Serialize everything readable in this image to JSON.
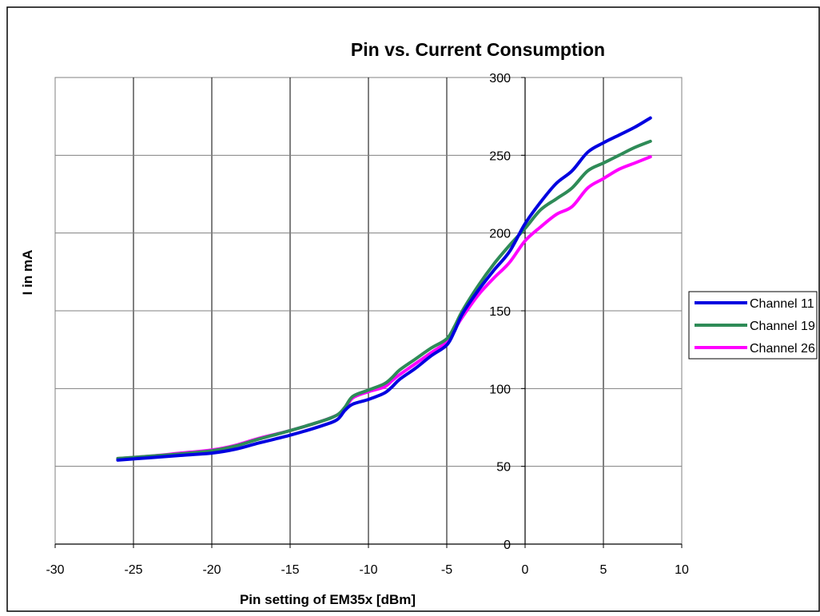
{
  "chart_data": {
    "type": "line",
    "title": "Pin vs. Current Consumption",
    "xlabel": "Pin setting of EM35x [dBm]",
    "ylabel": "I in mA",
    "xlim": [
      -30,
      10
    ],
    "ylim": [
      0,
      300
    ],
    "x_ticks": [
      -30,
      -25,
      -20,
      -15,
      -10,
      -5,
      0,
      5,
      10
    ],
    "y_ticks": [
      0,
      50,
      100,
      150,
      200,
      250,
      300
    ],
    "x_tick_labels": [
      "-30",
      "-25",
      "-20",
      "-15",
      "-10",
      "-5",
      "0",
      "5",
      "10"
    ],
    "y_tick_labels": [
      "0",
      "50",
      "100",
      "150",
      "200",
      "250",
      "300"
    ],
    "grid": true,
    "legend_position": "right",
    "series": [
      {
        "name": "Channel 11",
        "color": "#0000e0",
        "points": [
          [
            -26,
            54
          ],
          [
            -24,
            55.5
          ],
          [
            -22,
            57
          ],
          [
            -20,
            58.5
          ],
          [
            -18.5,
            61
          ],
          [
            -17,
            65
          ],
          [
            -15,
            70
          ],
          [
            -13,
            76
          ],
          [
            -12,
            80
          ],
          [
            -11.5,
            86
          ],
          [
            -11,
            90
          ],
          [
            -10,
            93
          ],
          [
            -9,
            97
          ],
          [
            -8.5,
            101
          ],
          [
            -8,
            106
          ],
          [
            -7,
            113
          ],
          [
            -6,
            121
          ],
          [
            -5,
            128
          ],
          [
            -4.5,
            137
          ],
          [
            -4,
            148
          ],
          [
            -3,
            163
          ],
          [
            -2,
            176
          ],
          [
            -1,
            188
          ],
          [
            0,
            206
          ],
          [
            1,
            220
          ],
          [
            2,
            232
          ],
          [
            3,
            240
          ],
          [
            4,
            252
          ],
          [
            5,
            258
          ],
          [
            6,
            263
          ],
          [
            7,
            268
          ],
          [
            8,
            274
          ]
        ]
      },
      {
        "name": "Channel 19",
        "color": "#2e8b57",
        "points": [
          [
            -26,
            55
          ],
          [
            -24,
            56.5
          ],
          [
            -22,
            58
          ],
          [
            -20,
            60
          ],
          [
            -18.5,
            63
          ],
          [
            -17,
            67.5
          ],
          [
            -15,
            73
          ],
          [
            -13,
            79
          ],
          [
            -12,
            83
          ],
          [
            -11.5,
            88
          ],
          [
            -11,
            95
          ],
          [
            -10,
            99
          ],
          [
            -9,
            103
          ],
          [
            -8.5,
            107
          ],
          [
            -8,
            112
          ],
          [
            -7,
            119
          ],
          [
            -6,
            126
          ],
          [
            -5,
            132
          ],
          [
            -4.5,
            140
          ],
          [
            -4,
            150
          ],
          [
            -3,
            166
          ],
          [
            -2,
            180
          ],
          [
            -1,
            192
          ],
          [
            0,
            203
          ],
          [
            1,
            215
          ],
          [
            2,
            222
          ],
          [
            3,
            229
          ],
          [
            4,
            240
          ],
          [
            5,
            245
          ],
          [
            6,
            250
          ],
          [
            7,
            255
          ],
          [
            8,
            259
          ]
        ]
      },
      {
        "name": "Channel 26",
        "color": "#ff00ff",
        "points": [
          [
            -26,
            55
          ],
          [
            -24,
            56.5
          ],
          [
            -22,
            58.5
          ],
          [
            -20,
            60.5
          ],
          [
            -18.5,
            63.5
          ],
          [
            -17,
            68
          ],
          [
            -15,
            73
          ],
          [
            -13,
            79
          ],
          [
            -12,
            83
          ],
          [
            -11.5,
            87
          ],
          [
            -11,
            94
          ],
          [
            -10,
            98
          ],
          [
            -9,
            101
          ],
          [
            -8.5,
            105
          ],
          [
            -8,
            109
          ],
          [
            -7,
            116
          ],
          [
            -6,
            123
          ],
          [
            -5,
            130
          ],
          [
            -4.5,
            138
          ],
          [
            -4,
            146
          ],
          [
            -3,
            160
          ],
          [
            -2,
            171
          ],
          [
            -1,
            181
          ],
          [
            0,
            195
          ],
          [
            1,
            204
          ],
          [
            2,
            212
          ],
          [
            3,
            217
          ],
          [
            4,
            229
          ],
          [
            5,
            235
          ],
          [
            6,
            241
          ],
          [
            7,
            245
          ],
          [
            8,
            249
          ]
        ]
      }
    ]
  }
}
